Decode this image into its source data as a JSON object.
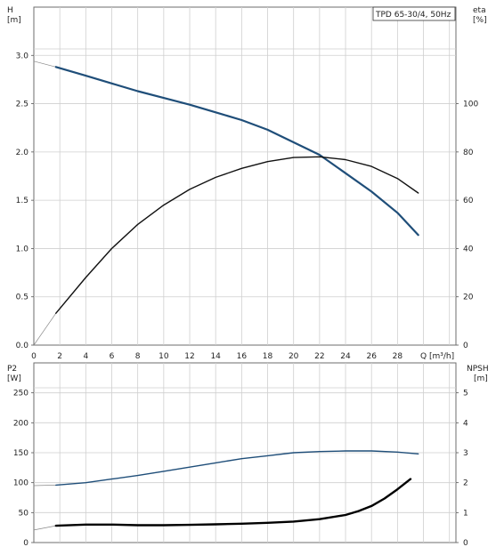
{
  "title": "TPD 65-30/4, 50Hz",
  "chart_data": [
    {
      "id": "head-efficiency",
      "type": "line",
      "left_axis": {
        "label_line1": "H",
        "label_line2": "[m]",
        "ticks": [
          "0.0",
          "0.5",
          "1.0",
          "1.5",
          "2.0",
          "2.5",
          "3.0"
        ],
        "ylim": [
          0,
          3.5
        ]
      },
      "right_axis": {
        "label_line1": "eta",
        "label_line2": "[%]",
        "ticks": [
          "0",
          "20",
          "40",
          "60",
          "80",
          "100"
        ],
        "ylim": [
          0,
          140
        ]
      },
      "x_axis": {
        "label": "Q [m³/h]",
        "ticks": [
          "0",
          "2",
          "4",
          "6",
          "8",
          "10",
          "12",
          "14",
          "16",
          "18",
          "20",
          "22",
          "24",
          "26",
          "28"
        ],
        "xlim": [
          0,
          32.5
        ]
      },
      "grid": true,
      "series": [
        {
          "key": "H",
          "axis": "left",
          "color": "#1f4e79",
          "width": 2.2,
          "x": [
            0,
            1.7,
            4,
            6,
            8,
            10,
            12,
            14,
            16,
            18,
            20,
            22,
            24,
            26,
            28,
            29.6
          ],
          "y": [
            2.94,
            2.88,
            2.79,
            2.71,
            2.63,
            2.56,
            2.49,
            2.41,
            2.33,
            2.23,
            2.1,
            1.97,
            1.78,
            1.59,
            1.37,
            1.14
          ]
        },
        {
          "key": "eta",
          "axis": "right",
          "color": "#111111",
          "width": 1.4,
          "x": [
            0,
            1.7,
            4,
            6,
            8,
            10,
            12,
            14,
            16,
            18,
            20,
            22,
            24,
            26,
            28,
            29.6
          ],
          "y": [
            0,
            13.2,
            28,
            40,
            50,
            58,
            64.5,
            69.5,
            73.2,
            76,
            77.7,
            78,
            76.8,
            74,
            69,
            63
          ]
        }
      ]
    },
    {
      "id": "power-npsh",
      "type": "line",
      "left_axis": {
        "label_line1": "P2",
        "label_line2": "[W]",
        "ticks": [
          "0",
          "50",
          "100",
          "150",
          "200",
          "250"
        ],
        "ylim": [
          0,
          300
        ]
      },
      "right_axis": {
        "label_line1": "NPSH",
        "label_line2": "[m]",
        "ticks": [
          "0",
          "1",
          "2",
          "3",
          "4",
          "5"
        ],
        "ylim": [
          0,
          6
        ]
      },
      "x_axis": {
        "xlim": [
          0,
          32.5
        ]
      },
      "grid": true,
      "series": [
        {
          "key": "P2",
          "axis": "left",
          "color": "#1f4e79",
          "width": 1.4,
          "x": [
            0,
            1.7,
            4,
            6,
            8,
            10,
            12,
            14,
            16,
            18,
            20,
            22,
            24,
            26,
            28,
            29.6
          ],
          "y": [
            95,
            96,
            100,
            106,
            112,
            119,
            126,
            133,
            140,
            145,
            150,
            152,
            153,
            153,
            151,
            148
          ]
        },
        {
          "key": "NPSH",
          "axis": "right",
          "color": "#000000",
          "width": 2.4,
          "x": [
            0,
            1.7,
            4,
            6,
            8,
            10,
            12,
            14,
            16,
            18,
            20,
            22,
            24,
            25,
            26,
            27,
            28,
            29
          ],
          "y": [
            0.42,
            0.56,
            0.6,
            0.6,
            0.58,
            0.58,
            0.59,
            0.61,
            0.63,
            0.66,
            0.7,
            0.78,
            0.92,
            1.05,
            1.22,
            1.47,
            1.78,
            2.12
          ]
        }
      ]
    }
  ]
}
